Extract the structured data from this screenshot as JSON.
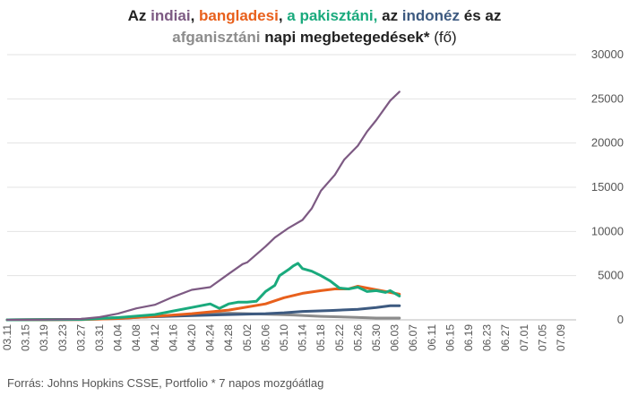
{
  "title": {
    "p1": "Az ",
    "india": "indiai",
    "p2": ", ",
    "bangladesh": "bangladesi",
    "p3": ", ",
    "pakistan": "a pakisztáni,",
    "p4": " az ",
    "indonesia": "indonéz",
    "p5": " és az",
    "afghanistan": "afganisztáni",
    "p6": " napi megbetegedések*",
    "p7": " (fő)"
  },
  "source": "Forrás: Johns Hopkins CSSE, Portfolio   * 7 napos mozgóátlag",
  "chart_data": {
    "type": "line",
    "ylim": [
      0,
      30000
    ],
    "yticks": [
      "30000",
      "25000",
      "20000",
      "15000",
      "10000",
      "5000",
      "0"
    ],
    "xticks": [
      "03.11",
      "03.15",
      "03.19",
      "03.23",
      "03.27",
      "03.31",
      "04.04",
      "04.08",
      "04.12",
      "04.16",
      "04.20",
      "04.24",
      "04.28",
      "05.02",
      "05.06",
      "05.10",
      "05.14",
      "05.18",
      "05.22",
      "05.26",
      "05.30",
      "06.03",
      "06.07",
      "06.11",
      "06.15",
      "06.19",
      "06.23",
      "06.27",
      "07.01",
      "07.05",
      "07.09"
    ],
    "grid": true,
    "series": [
      {
        "country": "India",
        "color": "#7d5a83",
        "values": [
          [
            0,
            0
          ],
          [
            8,
            20
          ],
          [
            16,
            100
          ],
          [
            20,
            300
          ],
          [
            24,
            700
          ],
          [
            28,
            1300
          ],
          [
            32,
            1700
          ],
          [
            36,
            2600
          ],
          [
            40,
            3400
          ],
          [
            44,
            3700
          ],
          [
            48,
            5200
          ],
          [
            51,
            6300
          ],
          [
            52,
            6500
          ],
          [
            56,
            8300
          ],
          [
            58,
            9300
          ],
          [
            61,
            10400
          ],
          [
            64,
            11300
          ],
          [
            66,
            12600
          ],
          [
            68,
            14600
          ],
          [
            71,
            16400
          ],
          [
            73,
            18100
          ],
          [
            76,
            19700
          ],
          [
            78,
            21300
          ],
          [
            80,
            22600
          ],
          [
            83,
            24800
          ],
          [
            85,
            25800
          ]
        ]
      },
      {
        "country": "Banglades",
        "color": "#e8601c",
        "values": [
          [
            0,
            0
          ],
          [
            16,
            40
          ],
          [
            24,
            150
          ],
          [
            32,
            400
          ],
          [
            40,
            700
          ],
          [
            48,
            1100
          ],
          [
            56,
            1800
          ],
          [
            60,
            2500
          ],
          [
            64,
            3000
          ],
          [
            68,
            3300
          ],
          [
            71,
            3500
          ],
          [
            74,
            3500
          ],
          [
            76,
            3800
          ],
          [
            78,
            3600
          ],
          [
            82,
            3200
          ],
          [
            85,
            2900
          ]
        ]
      },
      {
        "country": "Pakisztán",
        "color": "#1aaa7d",
        "values": [
          [
            0,
            0
          ],
          [
            16,
            50
          ],
          [
            24,
            250
          ],
          [
            32,
            600
          ],
          [
            36,
            1000
          ],
          [
            40,
            1400
          ],
          [
            44,
            1800
          ],
          [
            46,
            1300
          ],
          [
            48,
            1800
          ],
          [
            50,
            2000
          ],
          [
            52,
            2000
          ],
          [
            54,
            2100
          ],
          [
            56,
            3200
          ],
          [
            58,
            3900
          ],
          [
            59,
            5000
          ],
          [
            61,
            5700
          ],
          [
            62,
            6100
          ],
          [
            63,
            6400
          ],
          [
            64,
            5800
          ],
          [
            66,
            5500
          ],
          [
            68,
            5000
          ],
          [
            70,
            4400
          ],
          [
            72,
            3600
          ],
          [
            74,
            3500
          ],
          [
            76,
            3700
          ],
          [
            78,
            3200
          ],
          [
            80,
            3300
          ],
          [
            82,
            3100
          ],
          [
            83,
            3300
          ],
          [
            85,
            2700
          ]
        ]
      },
      {
        "country": "Indonézia",
        "color": "#3d5a80",
        "values": [
          [
            0,
            0
          ],
          [
            16,
            60
          ],
          [
            24,
            250
          ],
          [
            32,
            350
          ],
          [
            40,
            480
          ],
          [
            48,
            600
          ],
          [
            56,
            700
          ],
          [
            60,
            800
          ],
          [
            64,
            950
          ],
          [
            70,
            1050
          ],
          [
            76,
            1200
          ],
          [
            80,
            1400
          ],
          [
            83,
            1600
          ],
          [
            85,
            1600
          ]
        ]
      },
      {
        "country": "Afganisztán",
        "color": "#8c8c8c",
        "values": [
          [
            0,
            0
          ],
          [
            16,
            30
          ],
          [
            24,
            150
          ],
          [
            32,
            400
          ],
          [
            40,
            650
          ],
          [
            48,
            750
          ],
          [
            56,
            650
          ],
          [
            62,
            550
          ],
          [
            68,
            400
          ],
          [
            74,
            300
          ],
          [
            80,
            200
          ],
          [
            85,
            200
          ]
        ]
      }
    ]
  }
}
